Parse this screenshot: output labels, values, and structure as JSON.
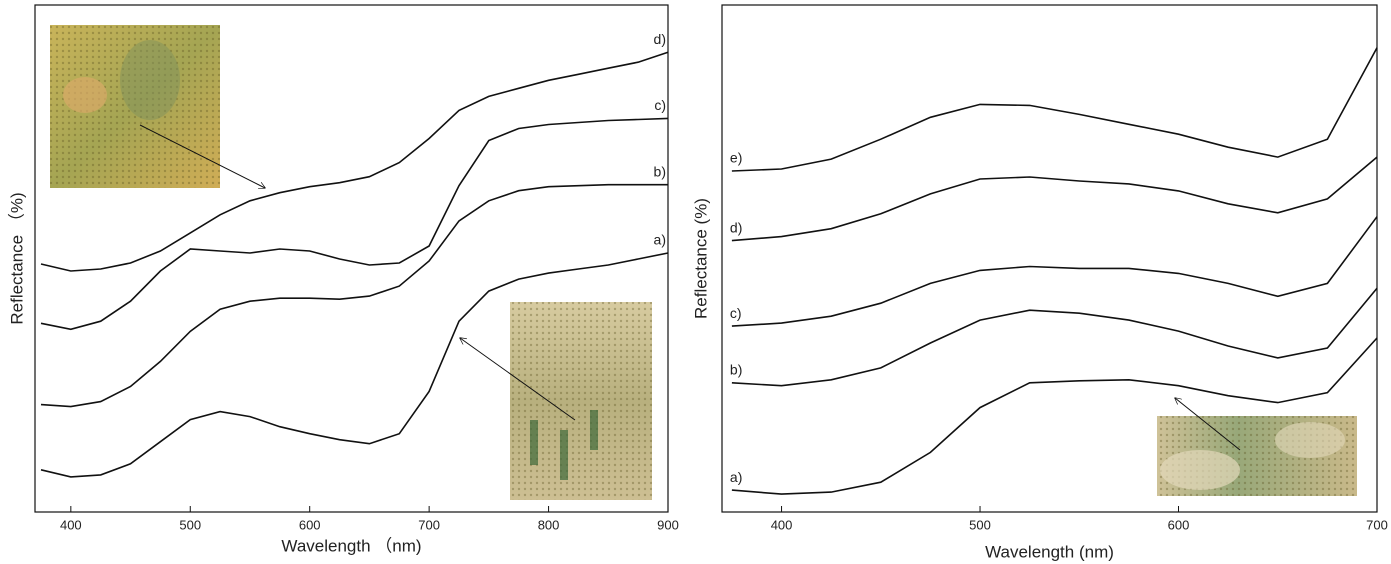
{
  "chart_data": [
    {
      "type": "line",
      "x_label": "Wavelength （nm)",
      "y_label": "Reflectance （%)",
      "x": [
        375,
        400,
        425,
        450,
        475,
        500,
        525,
        550,
        575,
        600,
        625,
        650,
        675,
        700,
        725,
        750,
        775,
        800,
        825,
        850,
        875,
        900
      ],
      "xlim": [
        370,
        900
      ],
      "xticks": [
        400,
        500,
        600,
        700,
        800,
        900
      ],
      "ylim": [
        0,
        505
      ],
      "series": [
        {
          "name": "a)",
          "color": "#111111",
          "values": [
            42,
            35,
            37,
            48,
            70,
            92,
            100,
            95,
            85,
            78,
            72,
            68,
            78,
            120,
            190,
            220,
            232,
            238,
            242,
            246,
            252,
            258
          ]
        },
        {
          "name": "b)",
          "color": "#111111",
          "values": [
            107,
            105,
            110,
            125,
            150,
            180,
            202,
            210,
            213,
            213,
            212,
            215,
            225,
            250,
            290,
            310,
            320,
            324,
            325,
            326,
            326,
            326
          ]
        },
        {
          "name": "c)",
          "color": "#111111",
          "values": [
            188,
            182,
            190,
            210,
            240,
            262,
            260,
            258,
            262,
            260,
            252,
            246,
            248,
            265,
            325,
            370,
            382,
            386,
            388,
            390,
            391,
            392
          ]
        },
        {
          "name": "d)",
          "color": "#111111",
          "values": [
            247,
            240,
            242,
            248,
            260,
            278,
            296,
            310,
            318,
            324,
            328,
            334,
            348,
            372,
            400,
            414,
            422,
            430,
            436,
            442,
            448,
            458
          ]
        }
      ]
    },
    {
      "type": "line",
      "x_label": "Wavelength (nm)",
      "y_label": "Reflectance (%)",
      "x": [
        375,
        400,
        425,
        450,
        475,
        500,
        525,
        550,
        575,
        600,
        625,
        650,
        675,
        700
      ],
      "xlim": [
        370,
        700
      ],
      "xticks": [
        400,
        500,
        600,
        700
      ],
      "ylim": [
        0,
        510
      ],
      "series": [
        {
          "name": "a)",
          "color": "#111111",
          "values": [
            22,
            18,
            20,
            30,
            60,
            105,
            130,
            132,
            133,
            127,
            117,
            110,
            120,
            175
          ]
        },
        {
          "name": "b)",
          "color": "#111111",
          "values": [
            130,
            127,
            133,
            145,
            170,
            193,
            203,
            200,
            193,
            182,
            167,
            155,
            165,
            225
          ]
        },
        {
          "name": "c)",
          "color": "#111111",
          "values": [
            187,
            190,
            197,
            210,
            230,
            243,
            247,
            245,
            245,
            240,
            230,
            217,
            230,
            297
          ]
        },
        {
          "name": "d)",
          "color": "#111111",
          "values": [
            273,
            277,
            285,
            300,
            320,
            335,
            337,
            333,
            330,
            323,
            310,
            301,
            315,
            357
          ]
        },
        {
          "name": "e)",
          "color": "#111111",
          "values": [
            343,
            345,
            355,
            375,
            397,
            410,
            409,
            400,
            390,
            380,
            367,
            357,
            375,
            467
          ]
        }
      ]
    }
  ]
}
